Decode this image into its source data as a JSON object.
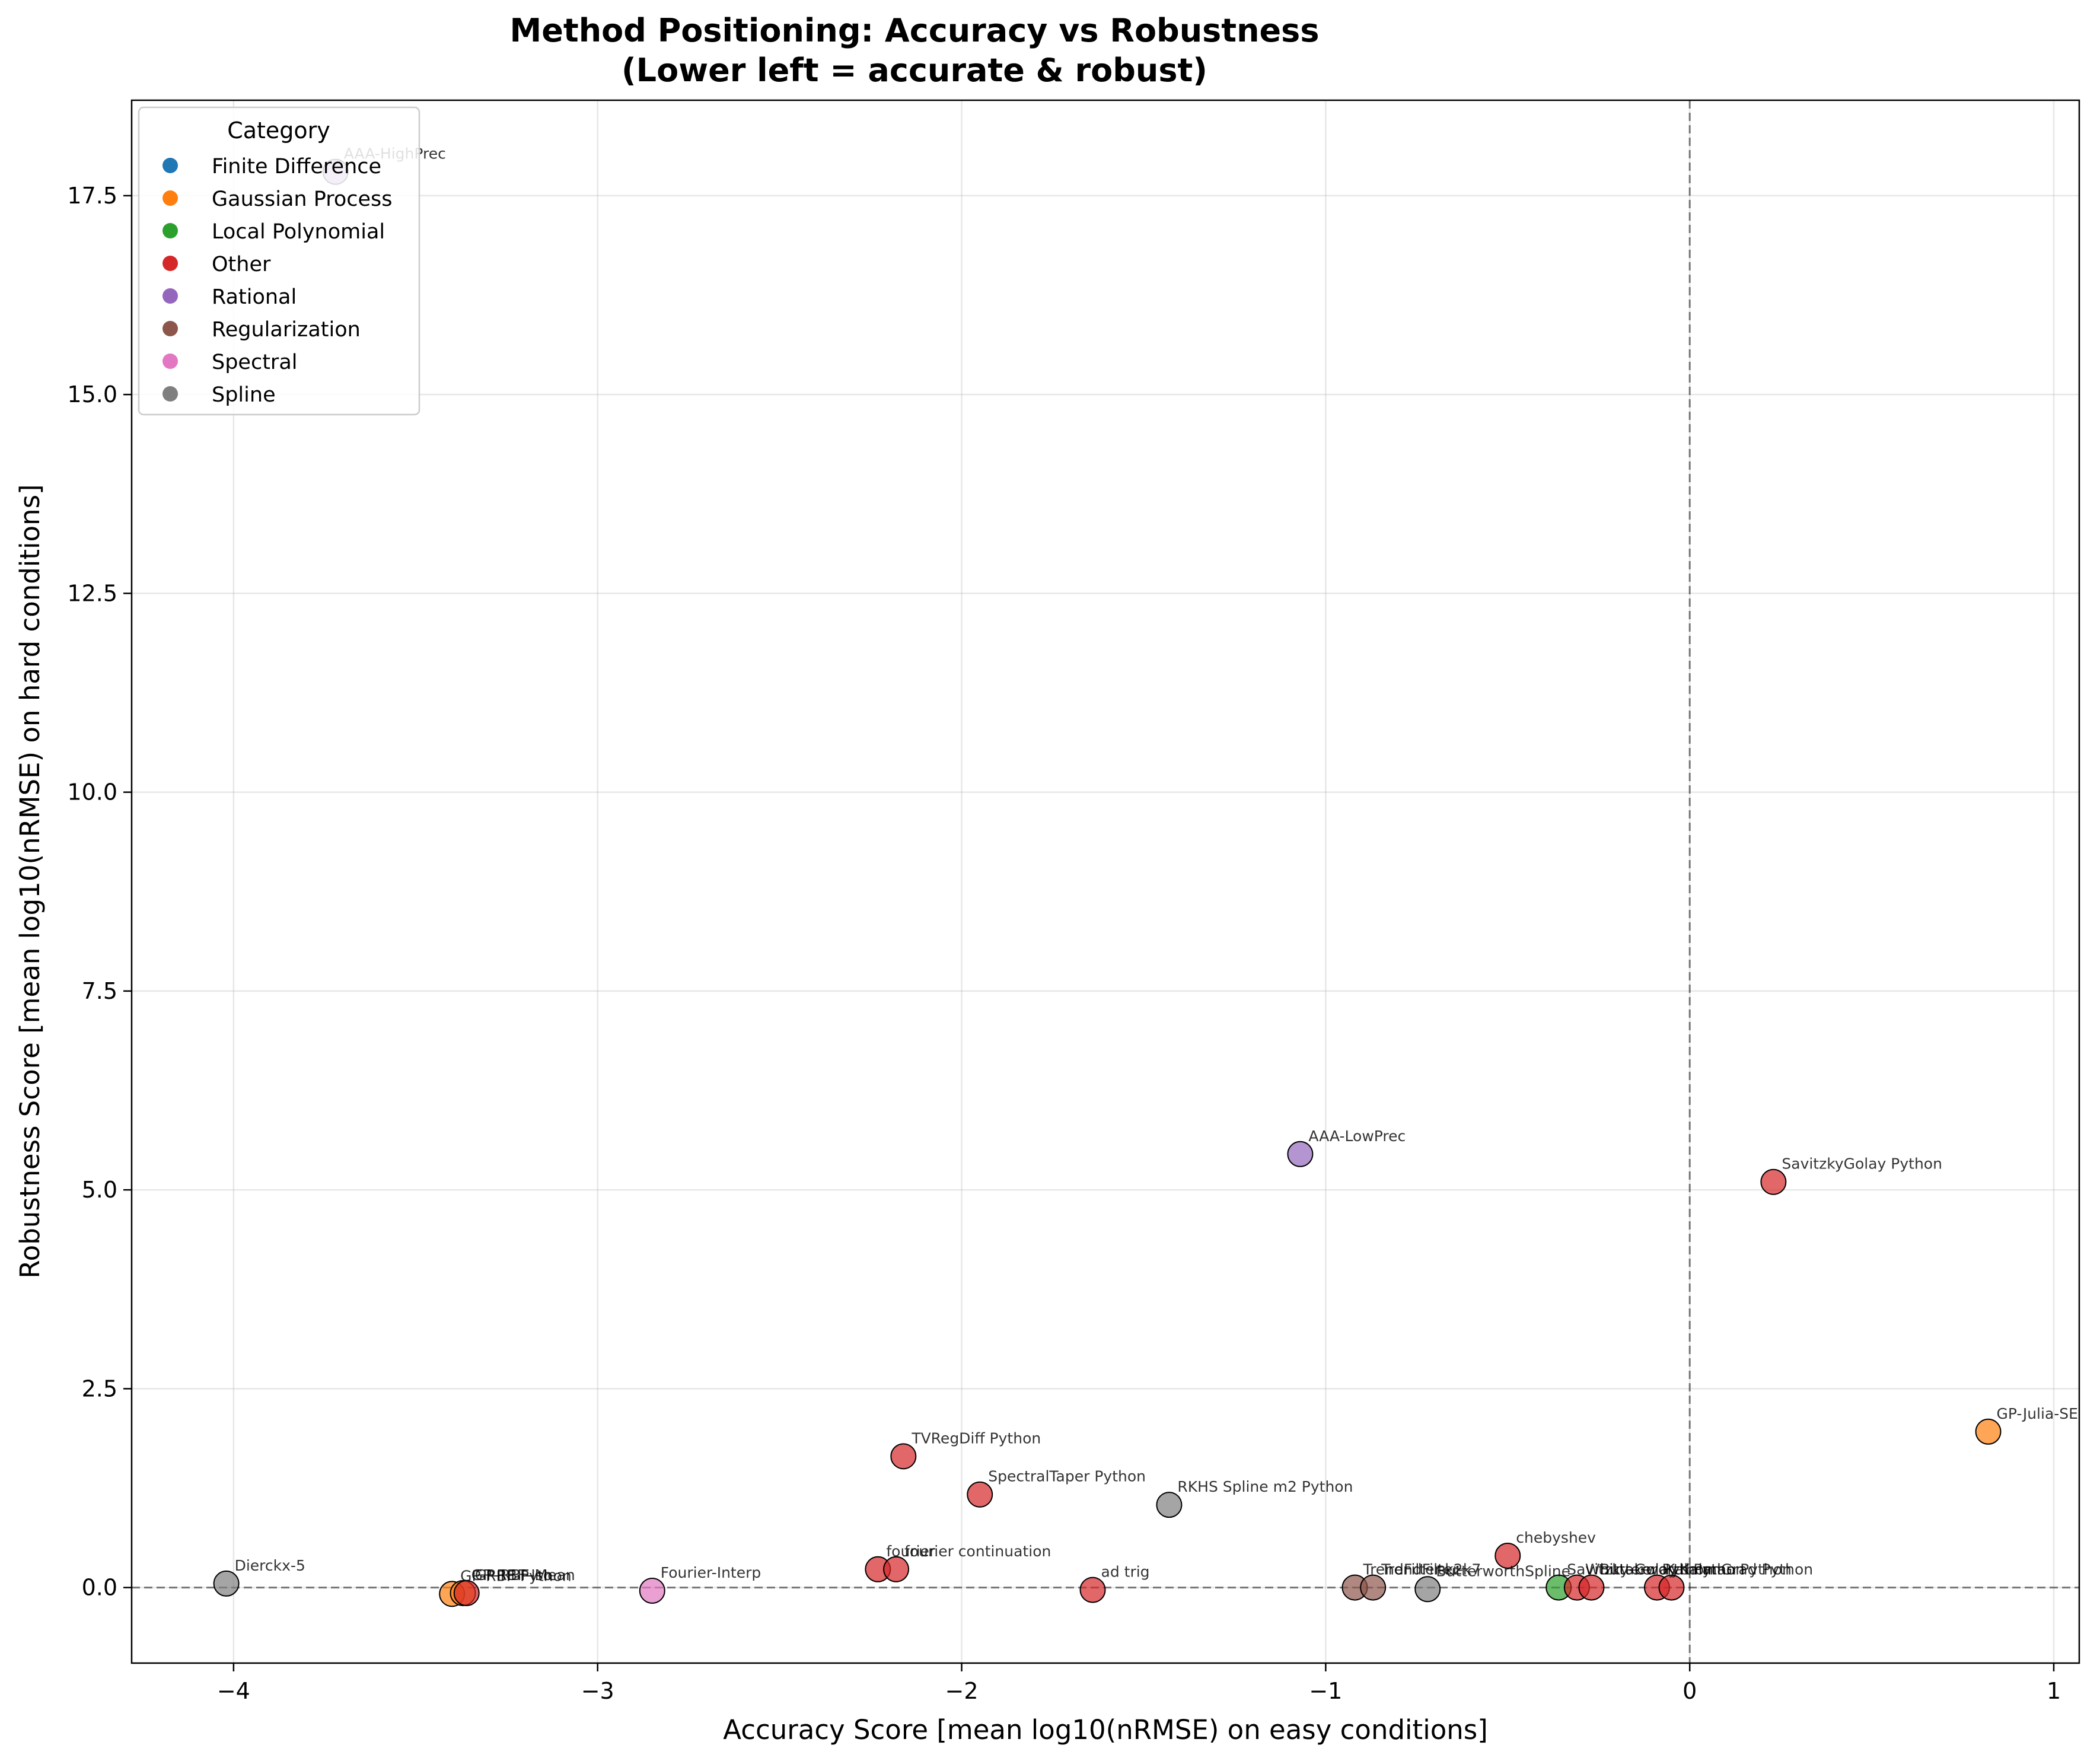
{
  "chart_data": {
    "type": "scatter",
    "title": "Method Positioning: Accuracy vs Robustness",
    "subtitle": "(Lower left = accurate & robust)",
    "xlabel": "Accuracy Score [mean log10(nRMSE) on easy conditions]",
    "ylabel": "Robustness Score [mean log10(nRMSE) on hard conditions]",
    "xlim": [
      -4.28,
      1.07
    ],
    "ylim": [
      -0.95,
      18.7
    ],
    "xticks": [
      -4,
      -3,
      -2,
      -1,
      0,
      1
    ],
    "xtick_labels": [
      "−4",
      "−3",
      "−2",
      "−1",
      "0",
      "1"
    ],
    "yticks": [
      0.0,
      2.5,
      5.0,
      7.5,
      10.0,
      12.5,
      15.0,
      17.5
    ],
    "ytick_labels": [
      "0.0",
      "2.5",
      "5.0",
      "7.5",
      "10.0",
      "12.5",
      "15.0",
      "17.5"
    ],
    "grid": true,
    "reference_lines": {
      "x": 0,
      "y": 0,
      "style": "dashed"
    },
    "legend": {
      "title": "Category",
      "placement": "top-left",
      "entries": [
        {
          "name": "Finite Difference",
          "color": "#1f77b4"
        },
        {
          "name": "Gaussian Process",
          "color": "#ff7f0e"
        },
        {
          "name": "Local Polynomial",
          "color": "#2ca02c"
        },
        {
          "name": "Other",
          "color": "#d62728"
        },
        {
          "name": "Rational",
          "color": "#9467bd"
        },
        {
          "name": "Regularization",
          "color": "#8c564b"
        },
        {
          "name": "Spectral",
          "color": "#e377c2"
        },
        {
          "name": "Spline",
          "color": "#7f7f7f"
        }
      ]
    },
    "points": [
      {
        "label": "AAA-HighPrec",
        "x": -3.72,
        "y": 17.8,
        "category": "Rational"
      },
      {
        "label": "AAA-LowPrec",
        "x": -1.07,
        "y": 5.45,
        "category": "Rational"
      },
      {
        "label": "SavitzkyGolay Python",
        "x": 0.23,
        "y": 5.1,
        "category": "Other"
      },
      {
        "label": "GP-Julia-SE",
        "x": 0.82,
        "y": 1.96,
        "category": "Gaussian Process"
      },
      {
        "label": "TVRegDiff Python",
        "x": -2.16,
        "y": 1.65,
        "category": "Other"
      },
      {
        "label": "SpectralTaper Python",
        "x": -1.95,
        "y": 1.17,
        "category": "Other"
      },
      {
        "label": "RKHS Spline m2 Python",
        "x": -1.43,
        "y": 1.04,
        "category": "Spline"
      },
      {
        "label": "chebyshev",
        "x": -0.5,
        "y": 0.4,
        "category": "Other"
      },
      {
        "label": "fourier",
        "x": -2.23,
        "y": 0.23,
        "category": "Other"
      },
      {
        "label": "fourier continuation",
        "x": -2.18,
        "y": 0.23,
        "category": "Other"
      },
      {
        "label": "Dierckx-5",
        "x": -4.02,
        "y": 0.05,
        "category": "Spline"
      },
      {
        "label": "GP-RBF-Python",
        "x": -3.4,
        "y": -0.08,
        "category": "Gaussian Process"
      },
      {
        "label": "GP-RBF-Iso",
        "x": -3.37,
        "y": -0.07,
        "category": "Gaussian Process"
      },
      {
        "label": "GP-RBF-Mean",
        "x": -3.36,
        "y": -0.07,
        "category": "Other"
      },
      {
        "label": "Fourier-Interp",
        "x": -2.85,
        "y": -0.04,
        "category": "Spectral"
      },
      {
        "label": "ad trig",
        "x": -1.64,
        "y": -0.03,
        "category": "Other"
      },
      {
        "label": "TrendFilter-k2",
        "x": -0.92,
        "y": 0.0,
        "category": "Regularization"
      },
      {
        "label": "TrendFilter-k7",
        "x": -0.87,
        "y": 0.0,
        "category": "Regularization"
      },
      {
        "label": "ButterworthSpline",
        "x": -0.72,
        "y": -0.02,
        "category": "Spline"
      },
      {
        "label": "Savitzky-Golay",
        "x": -0.36,
        "y": 0.0,
        "category": "Local Polynomial"
      },
      {
        "label": "Whittaker Python",
        "x": -0.31,
        "y": 0.0,
        "category": "Other"
      },
      {
        "label": "Butterworth Python",
        "x": -0.27,
        "y": 0.0,
        "category": "Other"
      },
      {
        "label": "KalmanGrad Python",
        "x": -0.09,
        "y": 0.0,
        "category": "Other"
      },
      {
        "label": "Kalman Python",
        "x": -0.05,
        "y": 0.0,
        "category": "Other"
      }
    ]
  }
}
